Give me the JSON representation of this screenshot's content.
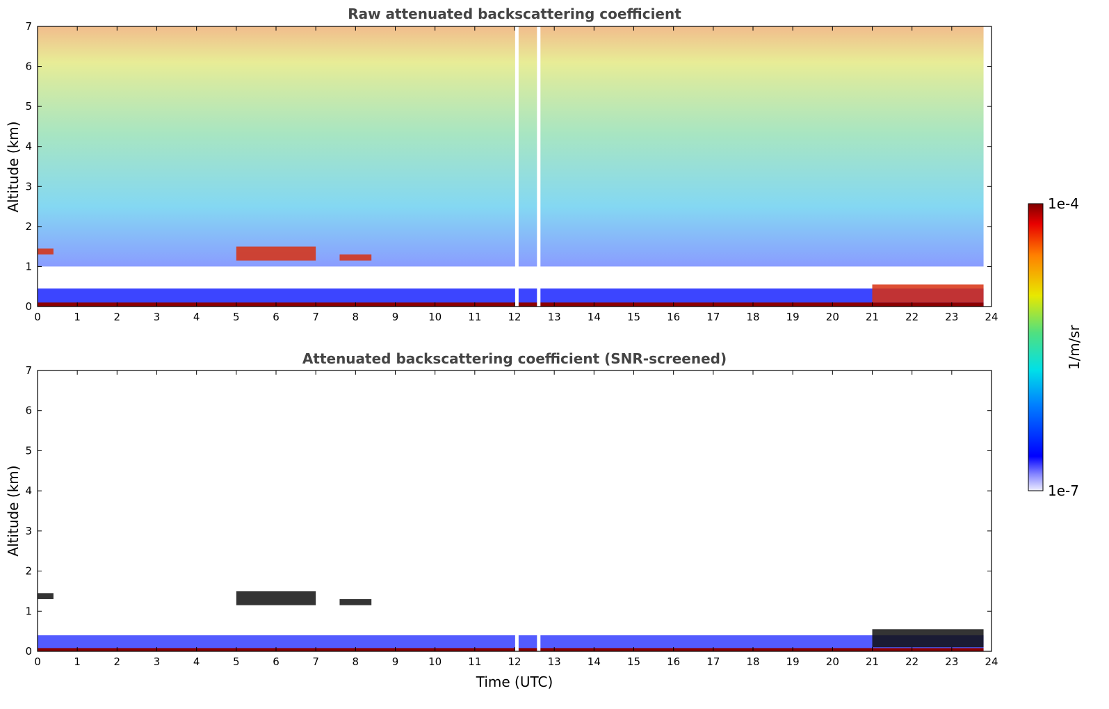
{
  "colors": {
    "frame": "#000000",
    "title": "#444444",
    "low_blue": "#1a24ff",
    "high_red": "#8b0000"
  },
  "colorbar": {
    "label": "1/m/sr",
    "max_label": "1e-4",
    "min_label": "1e-7",
    "scale": "log",
    "range": [
      1e-07,
      0.0001
    ],
    "colormap": "jet (low values faded to white)"
  },
  "chart_data": [
    {
      "type": "heatmap",
      "title": "Raw attenuated backscattering coefficient",
      "xlabel": "",
      "ylabel": "Altitude (km)",
      "xlim": [
        0,
        24
      ],
      "ylim": [
        0,
        7
      ],
      "x_ticks": [
        "0",
        "1",
        "2",
        "3",
        "4",
        "5",
        "6",
        "7",
        "8",
        "9",
        "10",
        "11",
        "12",
        "13",
        "14",
        "15",
        "16",
        "17",
        "18",
        "19",
        "20",
        "21",
        "22",
        "23",
        "24"
      ],
      "y_ticks": [
        "0",
        "1",
        "2",
        "3",
        "4",
        "5",
        "6",
        "7"
      ],
      "grid": false,
      "features": {
        "surface_layer": {
          "x": [
            0,
            23.8
          ],
          "altitude_km": [
            0,
            0.1
          ],
          "level": "high"
        },
        "boundary_layer": {
          "x": [
            0,
            23.8
          ],
          "altitude_km": [
            0,
            0.45
          ],
          "level": "low-mid"
        },
        "cloud_layers": [
          {
            "x": [
              0,
              0.4
            ],
            "altitude_km": [
              1.3,
              1.45
            ]
          },
          {
            "x": [
              5.0,
              7.0
            ],
            "altitude_km": [
              1.15,
              1.5
            ]
          },
          {
            "x": [
              7.6,
              8.4
            ],
            "altitude_km": [
              1.15,
              1.3
            ]
          },
          {
            "x": [
              21.0,
              23.8
            ],
            "altitude_km": [
              0.1,
              0.55
            ]
          }
        ],
        "noise_region": {
          "x": [
            0,
            23.8
          ],
          "altitude_km": [
            1.0,
            7.0
          ],
          "level": "mixed"
        },
        "gaps": [
          12.05,
          12.6
        ]
      }
    },
    {
      "type": "heatmap",
      "title": "Attenuated backscattering coefficient (SNR-screened)",
      "xlabel": "Time (UTC)",
      "ylabel": "Altitude (km)",
      "xlim": [
        0,
        24
      ],
      "ylim": [
        0,
        7
      ],
      "x_ticks": [
        "0",
        "1",
        "2",
        "3",
        "4",
        "5",
        "6",
        "7",
        "8",
        "9",
        "10",
        "11",
        "12",
        "13",
        "14",
        "15",
        "16",
        "17",
        "18",
        "19",
        "20",
        "21",
        "22",
        "23",
        "24"
      ],
      "y_ticks": [
        "0",
        "1",
        "2",
        "3",
        "4",
        "5",
        "6",
        "7"
      ],
      "grid": false,
      "features": {
        "surface_layer": {
          "x": [
            0,
            23.8
          ],
          "altitude_km": [
            0,
            0.08
          ],
          "level": "high"
        },
        "boundary_layer": {
          "x": [
            0,
            23.8
          ],
          "altitude_km": [
            0,
            0.4
          ],
          "level": "low"
        },
        "cloud_layers": [
          {
            "x": [
              0,
              0.4
            ],
            "altitude_km": [
              1.3,
              1.45
            ]
          },
          {
            "x": [
              5.0,
              7.0
            ],
            "altitude_km": [
              1.15,
              1.5
            ]
          },
          {
            "x": [
              7.6,
              8.4
            ],
            "altitude_km": [
              1.15,
              1.3
            ]
          },
          {
            "x": [
              21.0,
              23.8
            ],
            "altitude_km": [
              0.1,
              0.55
            ]
          }
        ],
        "gaps": [
          12.05,
          12.6
        ]
      }
    }
  ]
}
